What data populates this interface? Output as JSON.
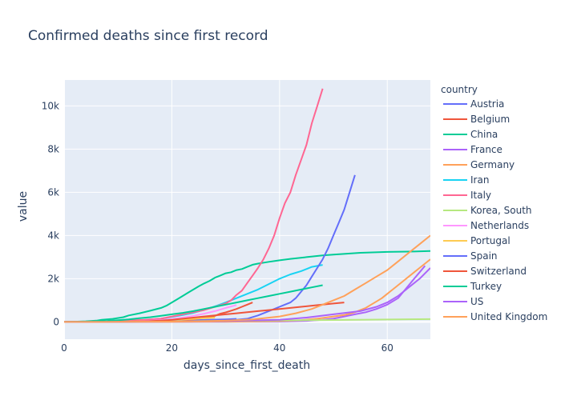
{
  "chart_data": {
    "type": "line",
    "title": "Confirmed deaths since first record",
    "xlabel": "days_since_first_death",
    "ylabel": "value",
    "xlim": [
      0,
      68
    ],
    "ylim": [
      -800,
      11200
    ],
    "x_ticks": [
      0,
      20,
      40,
      60
    ],
    "y_ticks": [
      0,
      2000,
      4000,
      6000,
      8000,
      10000
    ],
    "y_tick_labels": [
      "0",
      "2k",
      "4k",
      "6k",
      "8k",
      "10k"
    ],
    "grid": true,
    "legend": {
      "title": "country",
      "placement": "right"
    },
    "series": [
      {
        "name": "Austria",
        "color": "#636efa",
        "points": [
          [
            0,
            0
          ],
          [
            4,
            2
          ],
          [
            8,
            5
          ],
          [
            12,
            10
          ],
          [
            15,
            20
          ],
          [
            18,
            40
          ],
          [
            21,
            60
          ],
          [
            24,
            80
          ],
          [
            27,
            100
          ],
          [
            30,
            120
          ],
          [
            32,
            140
          ]
        ]
      },
      {
        "name": "Belgium",
        "color": "#EF553B",
        "points": [
          [
            0,
            0
          ],
          [
            5,
            3
          ],
          [
            10,
            10
          ],
          [
            15,
            30
          ],
          [
            18,
            60
          ],
          [
            21,
            90
          ],
          [
            24,
            120
          ],
          [
            26,
            200
          ],
          [
            28,
            280
          ],
          [
            29,
            380
          ],
          [
            30,
            440
          ],
          [
            31,
            520
          ],
          [
            32,
            600
          ],
          [
            33,
            700
          ],
          [
            34,
            800
          ],
          [
            35,
            900
          ]
        ]
      },
      {
        "name": "China",
        "color": "#00cc96",
        "points": [
          [
            0,
            0
          ],
          [
            2,
            10
          ],
          [
            4,
            30
          ],
          [
            6,
            60
          ],
          [
            7,
            100
          ],
          [
            9,
            140
          ],
          [
            11,
            220
          ],
          [
            12,
            300
          ],
          [
            14,
            400
          ],
          [
            16,
            520
          ],
          [
            18,
            650
          ],
          [
            19,
            750
          ],
          [
            20,
            900
          ],
          [
            21,
            1050
          ],
          [
            22,
            1200
          ],
          [
            23,
            1350
          ],
          [
            24,
            1500
          ],
          [
            25,
            1650
          ],
          [
            26,
            1780
          ],
          [
            27,
            1900
          ],
          [
            28,
            2050
          ],
          [
            29,
            2150
          ],
          [
            30,
            2250
          ],
          [
            31,
            2300
          ],
          [
            32,
            2400
          ],
          [
            33,
            2450
          ],
          [
            34,
            2550
          ],
          [
            35,
            2650
          ],
          [
            36,
            2700
          ],
          [
            38,
            2780
          ],
          [
            40,
            2850
          ],
          [
            42,
            2920
          ],
          [
            45,
            3000
          ],
          [
            48,
            3080
          ],
          [
            50,
            3120
          ],
          [
            55,
            3200
          ],
          [
            60,
            3240
          ],
          [
            65,
            3260
          ],
          [
            68,
            3280
          ]
        ]
      },
      {
        "name": "France",
        "color": "#ab63fa",
        "points": [
          [
            0,
            0
          ],
          [
            10,
            2
          ],
          [
            20,
            5
          ],
          [
            30,
            10
          ],
          [
            40,
            20
          ],
          [
            45,
            50
          ],
          [
            48,
            100
          ],
          [
            50,
            150
          ],
          [
            52,
            250
          ],
          [
            54,
            350
          ],
          [
            56,
            450
          ],
          [
            58,
            600
          ],
          [
            60,
            800
          ],
          [
            62,
            1100
          ],
          [
            63,
            1400
          ],
          [
            64,
            1700
          ],
          [
            65,
            2000
          ],
          [
            66,
            2300
          ],
          [
            67,
            2600
          ]
        ]
      },
      {
        "name": "Germany",
        "color": "#FFA15A",
        "points": [
          [
            0,
            0
          ],
          [
            10,
            2
          ],
          [
            20,
            5
          ],
          [
            30,
            10
          ],
          [
            35,
            20
          ],
          [
            40,
            40
          ],
          [
            44,
            80
          ],
          [
            47,
            150
          ],
          [
            50,
            250
          ],
          [
            52,
            320
          ],
          [
            53,
            380
          ],
          [
            54,
            450
          ],
          [
            55,
            550
          ],
          [
            56,
            650
          ],
          [
            57,
            800
          ],
          [
            58,
            950
          ],
          [
            59,
            1100
          ],
          [
            60,
            1300
          ],
          [
            61,
            1500
          ],
          [
            62,
            1700
          ],
          [
            63,
            1900
          ],
          [
            64,
            2100
          ],
          [
            65,
            2300
          ],
          [
            66,
            2500
          ],
          [
            67,
            2700
          ],
          [
            68,
            2900
          ]
        ]
      },
      {
        "name": "Iran",
        "color": "#19d3f3",
        "points": [
          [
            0,
            0
          ],
          [
            3,
            5
          ],
          [
            6,
            15
          ],
          [
            9,
            30
          ],
          [
            12,
            50
          ],
          [
            14,
            80
          ],
          [
            16,
            110
          ],
          [
            18,
            150
          ],
          [
            20,
            230
          ],
          [
            22,
            320
          ],
          [
            24,
            420
          ],
          [
            26,
            560
          ],
          [
            28,
            720
          ],
          [
            30,
            900
          ],
          [
            32,
            1100
          ],
          [
            34,
            1300
          ],
          [
            36,
            1500
          ],
          [
            38,
            1750
          ],
          [
            40,
            2000
          ],
          [
            42,
            2200
          ],
          [
            44,
            2350
          ],
          [
            45,
            2450
          ],
          [
            46,
            2550
          ],
          [
            48,
            2640
          ]
        ]
      },
      {
        "name": "Italy",
        "color": "#FF6692",
        "points": [
          [
            0,
            0
          ],
          [
            5,
            20
          ],
          [
            10,
            50
          ],
          [
            15,
            100
          ],
          [
            18,
            150
          ],
          [
            20,
            250
          ],
          [
            22,
            350
          ],
          [
            24,
            450
          ],
          [
            26,
            550
          ],
          [
            28,
            700
          ],
          [
            30,
            850
          ],
          [
            31,
            1000
          ],
          [
            32,
            1250
          ],
          [
            33,
            1450
          ],
          [
            34,
            1800
          ],
          [
            35,
            2150
          ],
          [
            36,
            2500
          ],
          [
            37,
            2900
          ],
          [
            38,
            3400
          ],
          [
            39,
            4000
          ],
          [
            40,
            4800
          ],
          [
            41,
            5500
          ],
          [
            42,
            6000
          ],
          [
            43,
            6800
          ],
          [
            44,
            7500
          ],
          [
            45,
            8200
          ],
          [
            46,
            9200
          ],
          [
            47,
            10000
          ],
          [
            48,
            10800
          ]
        ]
      },
      {
        "name": "Korea, South",
        "color": "#B6E880",
        "points": [
          [
            0,
            0
          ],
          [
            10,
            10
          ],
          [
            20,
            30
          ],
          [
            30,
            50
          ],
          [
            40,
            70
          ],
          [
            50,
            90
          ],
          [
            60,
            110
          ],
          [
            68,
            130
          ]
        ]
      },
      {
        "name": "Netherlands",
        "color": "#FF97FF",
        "points": [
          [
            0,
            0
          ],
          [
            5,
            5
          ],
          [
            10,
            15
          ],
          [
            15,
            40
          ],
          [
            18,
            80
          ],
          [
            20,
            130
          ],
          [
            22,
            200
          ],
          [
            24,
            280
          ],
          [
            26,
            380
          ],
          [
            28,
            500
          ],
          [
            30,
            650
          ],
          [
            32,
            780
          ]
        ]
      },
      {
        "name": "Portugal",
        "color": "#FECB52",
        "points": [
          [
            0,
            0
          ],
          [
            5,
            5
          ],
          [
            10,
            15
          ],
          [
            15,
            30
          ],
          [
            18,
            50
          ],
          [
            20,
            80
          ],
          [
            22,
            110
          ],
          [
            24,
            140
          ],
          [
            26,
            170
          ],
          [
            28,
            200
          ]
        ]
      },
      {
        "name": "Spain",
        "color": "#636efa",
        "points": [
          [
            0,
            0
          ],
          [
            10,
            10
          ],
          [
            20,
            20
          ],
          [
            30,
            50
          ],
          [
            34,
            150
          ],
          [
            36,
            300
          ],
          [
            38,
            500
          ],
          [
            40,
            700
          ],
          [
            42,
            900
          ],
          [
            43,
            1100
          ],
          [
            44,
            1400
          ],
          [
            45,
            1700
          ],
          [
            46,
            2100
          ],
          [
            47,
            2500
          ],
          [
            48,
            2900
          ],
          [
            49,
            3400
          ],
          [
            50,
            4000
          ],
          [
            51,
            4600
          ],
          [
            52,
            5200
          ],
          [
            53,
            6000
          ],
          [
            54,
            6800
          ]
        ]
      },
      {
        "name": "Switzerland",
        "color": "#EF553B",
        "points": [
          [
            0,
            0
          ],
          [
            5,
            5
          ],
          [
            10,
            15
          ],
          [
            15,
            30
          ],
          [
            18,
            60
          ],
          [
            20,
            100
          ],
          [
            22,
            150
          ],
          [
            24,
            200
          ],
          [
            26,
            250
          ],
          [
            28,
            300
          ],
          [
            30,
            350
          ],
          [
            32,
            400
          ],
          [
            34,
            450
          ],
          [
            36,
            500
          ],
          [
            38,
            550
          ],
          [
            40,
            600
          ],
          [
            42,
            650
          ],
          [
            44,
            700
          ],
          [
            46,
            750
          ],
          [
            48,
            800
          ],
          [
            50,
            850
          ],
          [
            52,
            900
          ]
        ]
      },
      {
        "name": "Turkey",
        "color": "#00cc96",
        "points": [
          [
            0,
            0
          ],
          [
            2,
            5
          ],
          [
            4,
            15
          ],
          [
            6,
            30
          ],
          [
            8,
            50
          ],
          [
            10,
            80
          ],
          [
            12,
            120
          ],
          [
            14,
            170
          ],
          [
            16,
            220
          ],
          [
            18,
            280
          ],
          [
            20,
            350
          ],
          [
            22,
            420
          ],
          [
            24,
            500
          ],
          [
            26,
            600
          ],
          [
            28,
            700
          ],
          [
            30,
            800
          ],
          [
            32,
            900
          ],
          [
            34,
            1000
          ],
          [
            36,
            1100
          ],
          [
            38,
            1200
          ],
          [
            40,
            1300
          ],
          [
            42,
            1400
          ],
          [
            44,
            1500
          ],
          [
            46,
            1600
          ],
          [
            48,
            1700
          ]
        ]
      },
      {
        "name": "US",
        "color": "#ab63fa",
        "points": [
          [
            0,
            0
          ],
          [
            10,
            5
          ],
          [
            20,
            15
          ],
          [
            30,
            40
          ],
          [
            40,
            100
          ],
          [
            45,
            200
          ],
          [
            50,
            350
          ],
          [
            55,
            500
          ],
          [
            58,
            700
          ],
          [
            60,
            900
          ],
          [
            62,
            1200
          ],
          [
            64,
            1600
          ],
          [
            66,
            2000
          ],
          [
            68,
            2500
          ]
        ]
      },
      {
        "name": "United Kingdom",
        "color": "#FFA15A",
        "points": [
          [
            0,
            0
          ],
          [
            10,
            5
          ],
          [
            20,
            15
          ],
          [
            25,
            30
          ],
          [
            30,
            60
          ],
          [
            35,
            120
          ],
          [
            40,
            250
          ],
          [
            43,
            400
          ],
          [
            46,
            600
          ],
          [
            48,
            800
          ],
          [
            50,
            1000
          ],
          [
            52,
            1200
          ],
          [
            54,
            1500
          ],
          [
            56,
            1800
          ],
          [
            58,
            2100
          ],
          [
            60,
            2400
          ],
          [
            62,
            2800
          ],
          [
            64,
            3200
          ],
          [
            66,
            3600
          ],
          [
            68,
            4000
          ]
        ]
      }
    ]
  }
}
